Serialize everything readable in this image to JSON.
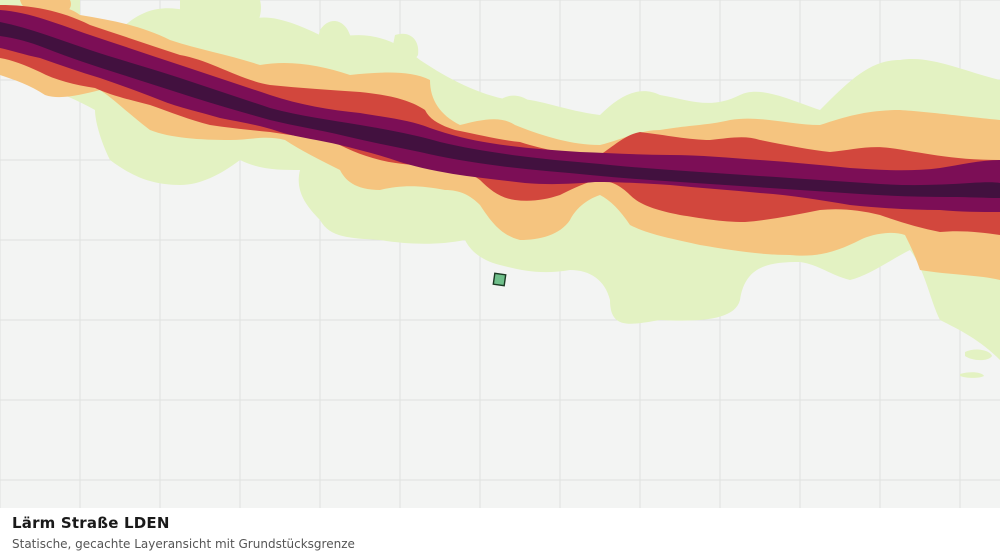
{
  "caption": {
    "title": "Lärm Straße LDEN",
    "subtitle": "Statische, gecachte Layeransicht mit Grundstücksgrenze"
  },
  "map": {
    "background_color": "#f3f4f3",
    "grid_color": "#dfe1df",
    "noise_classes": [
      {
        "name": "noise-band-lowest",
        "color": "#e3f2c2"
      },
      {
        "name": "noise-band-low",
        "color": "#f5c47f"
      },
      {
        "name": "noise-band-medium",
        "color": "#d2473d"
      },
      {
        "name": "noise-band-high",
        "color": "#7c0e56"
      },
      {
        "name": "noise-band-highest",
        "color": "#42113f"
      }
    ],
    "parcel_marker": {
      "fill": "#6fbf8a",
      "stroke": "#1b3a24"
    }
  }
}
